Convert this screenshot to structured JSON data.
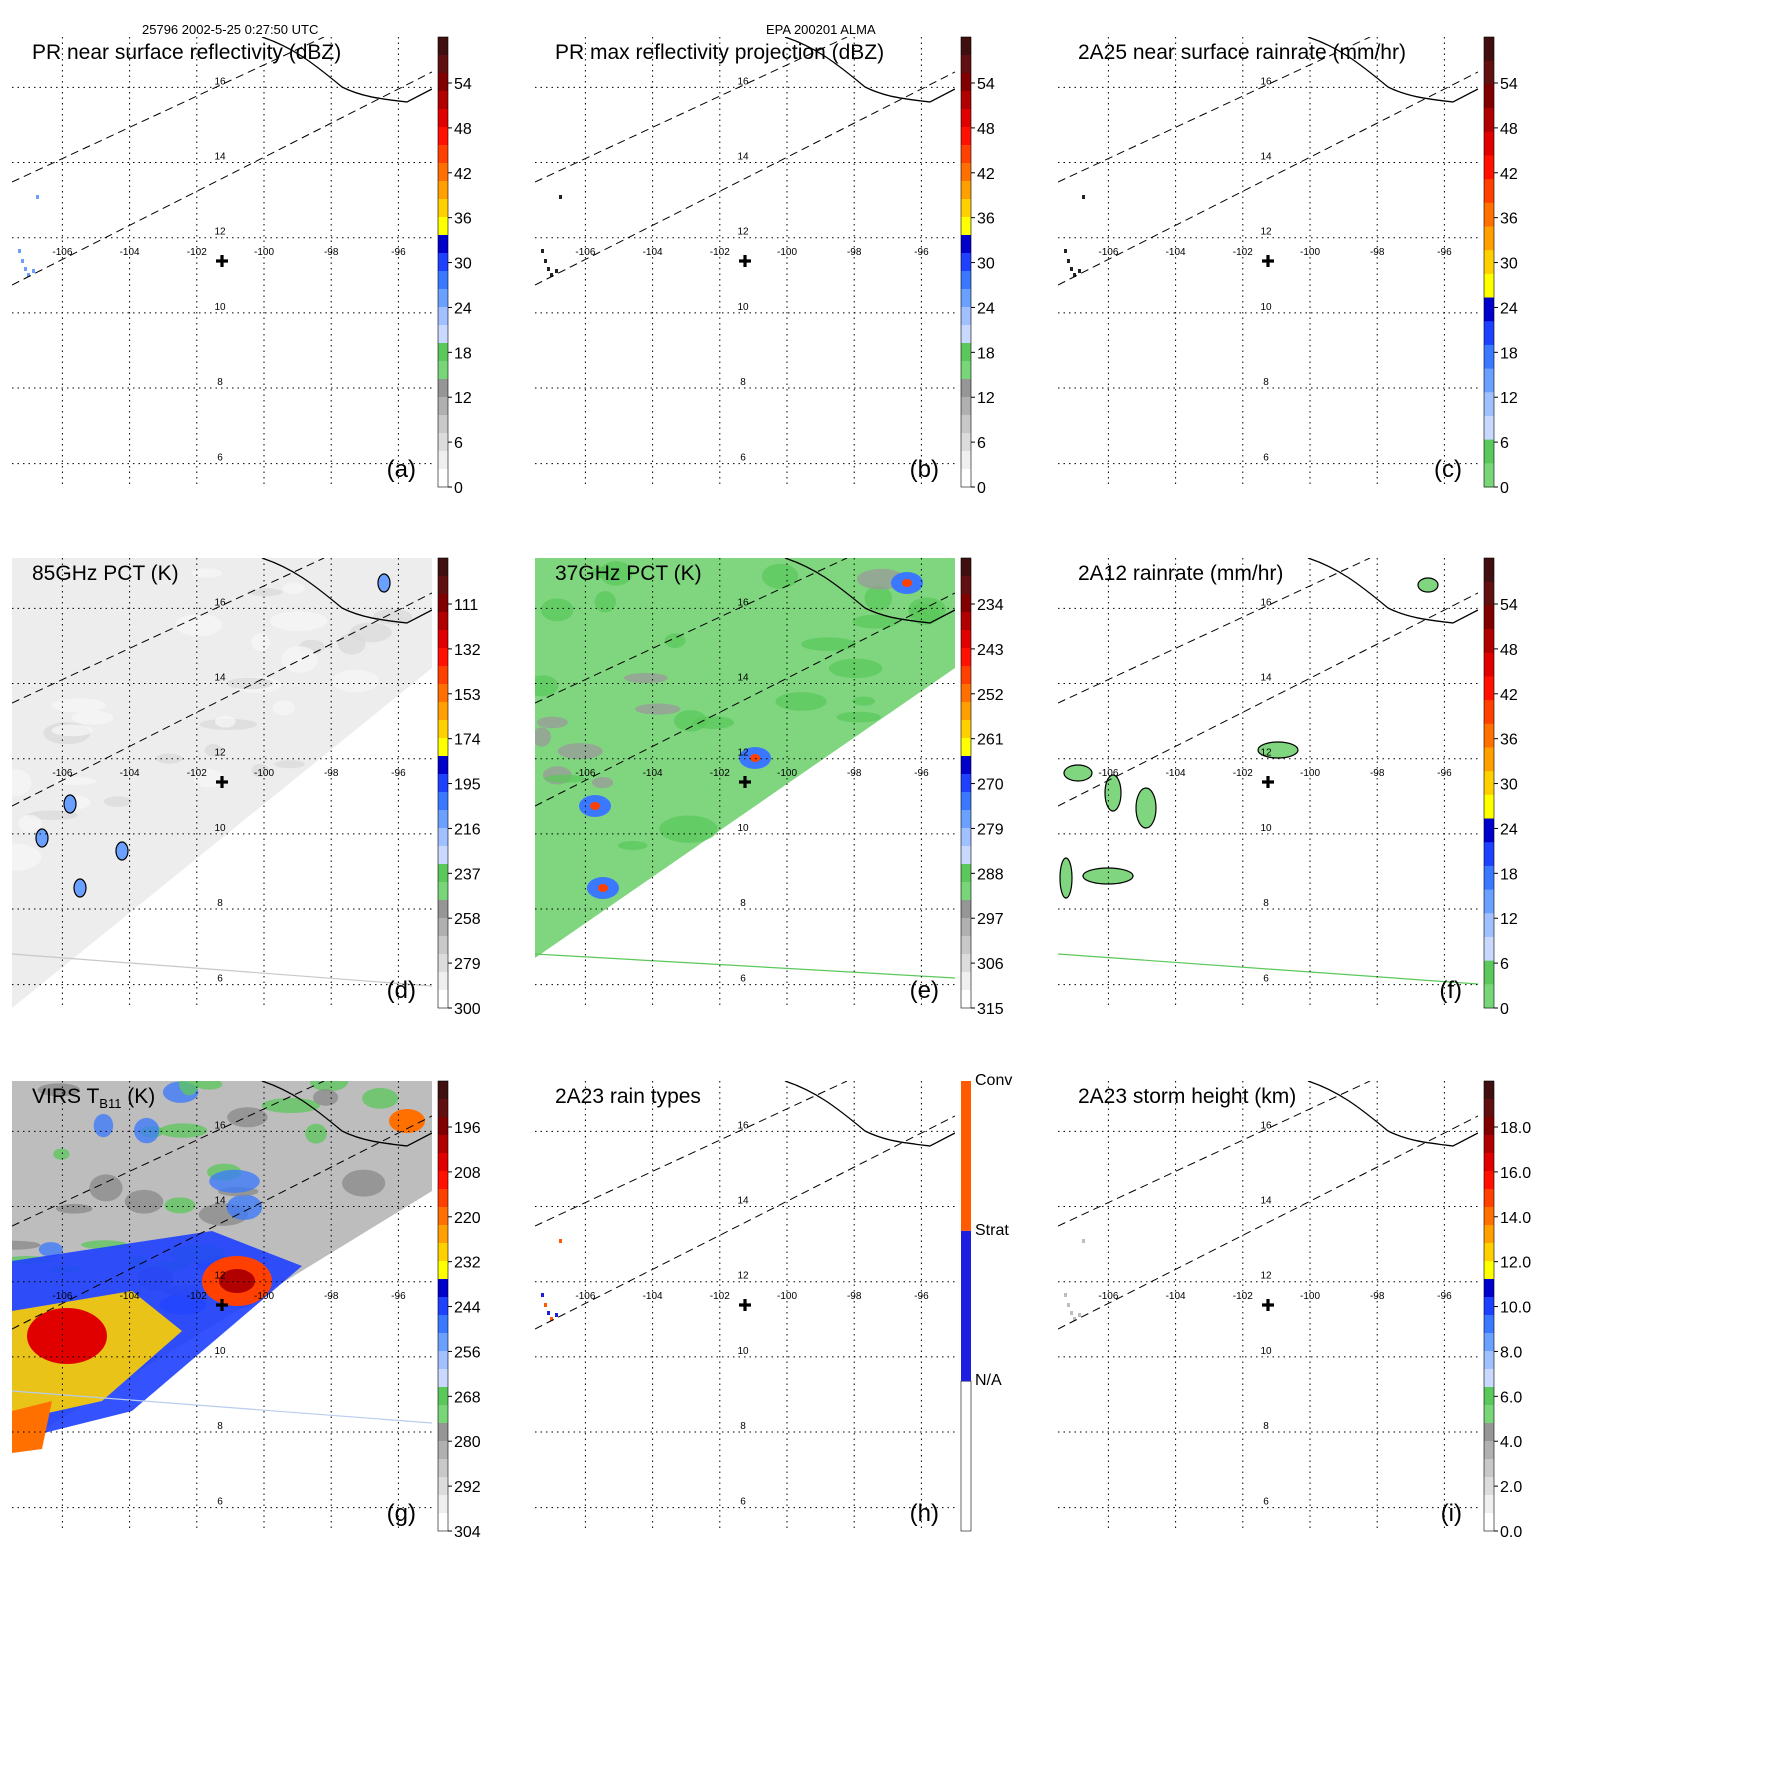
{
  "header": {
    "orbit_time": "25796 2002-5-25 0:27:50 UTC",
    "storm_id": "EPA 200201 ALMA"
  },
  "map": {
    "lon_labels": [
      "-106",
      "-104",
      "-102",
      "-100",
      "-98",
      "-96"
    ],
    "lat_labels": [
      "16",
      "14",
      "12",
      "10",
      "8",
      "6"
    ],
    "center_marker": "plus-marker"
  },
  "panels": [
    {
      "id": "a",
      "title": "PR near surface reflectivity (dBZ)",
      "letter": "(a)",
      "colorbar": [
        "54",
        "48",
        "42",
        "36",
        "30",
        "24",
        "18",
        "12",
        "6",
        "0"
      ]
    },
    {
      "id": "b",
      "title": "PR max reflectivity projection (dBZ)",
      "letter": "(b)",
      "colorbar": [
        "54",
        "48",
        "42",
        "36",
        "30",
        "24",
        "18",
        "12",
        "6",
        "0"
      ]
    },
    {
      "id": "c",
      "title": "2A25 near surface rainrate (mm/hr)",
      "letter": "(c)",
      "colorbar": [
        "54",
        "48",
        "42",
        "36",
        "30",
        "24",
        "18",
        "12",
        "6",
        "0"
      ]
    },
    {
      "id": "d",
      "title": "85GHz PCT (K)",
      "letter": "(d)",
      "colorbar": [
        "111",
        "132",
        "153",
        "174",
        "195",
        "216",
        "237",
        "258",
        "279",
        "300"
      ]
    },
    {
      "id": "e",
      "title": "37GHz PCT (K)",
      "letter": "(e)",
      "colorbar": [
        "234",
        "243",
        "252",
        "261",
        "270",
        "279",
        "288",
        "297",
        "306",
        "315"
      ]
    },
    {
      "id": "f",
      "title": "2A12 rainrate (mm/hr)",
      "letter": "(f)",
      "colorbar": [
        "54",
        "48",
        "42",
        "36",
        "30",
        "24",
        "18",
        "12",
        "6",
        "0"
      ]
    },
    {
      "id": "g",
      "title": "VIRS T",
      "title_sub": "B11",
      "title_suffix": " (K)",
      "letter": "(g)",
      "colorbar": [
        "196",
        "208",
        "220",
        "232",
        "244",
        "256",
        "268",
        "280",
        "292",
        "304"
      ]
    },
    {
      "id": "h",
      "title": "2A23 rain types",
      "letter": "(h)",
      "colorbar": [
        "Conv",
        "Strat",
        "N/A"
      ]
    },
    {
      "id": "i",
      "title": "2A23 storm height (km)",
      "letter": "(i)",
      "colorbar": [
        "18.0",
        "16.0",
        "14.0",
        "12.0",
        "10.0",
        "8.0",
        "6.0",
        "4.0",
        "2.0",
        "0.0"
      ]
    }
  ],
  "palettes": {
    "dbz": [
      "#ffffff",
      "#efefef",
      "#dcdcdc",
      "#c8c8c8",
      "#b0b0b0",
      "#969696",
      "#78d678",
      "#5bc85b",
      "#c8d8ff",
      "#a0c0ff",
      "#6aa0ff",
      "#3a78ff",
      "#1e40ff",
      "#0000cc",
      "#ffff00",
      "#ffd000",
      "#ffa000",
      "#ff7000",
      "#ff4000",
      "#ff1000",
      "#e00000",
      "#b00000",
      "#800000",
      "#601010",
      "#401010"
    ],
    "rain": [
      "#78d678",
      "#5bc85b",
      "#c8d8ff",
      "#a0c0ff",
      "#6aa0ff",
      "#3a78ff",
      "#1e40ff",
      "#0000cc",
      "#ffff00",
      "#ffd000",
      "#ffa000",
      "#ff7000",
      "#ff4000",
      "#ff1000",
      "#e00000",
      "#b00000",
      "#800000",
      "#601010",
      "#401010"
    ],
    "raintype": [
      "#ffffff",
      "#1e1ee0",
      "#ff5a00"
    ]
  }
}
